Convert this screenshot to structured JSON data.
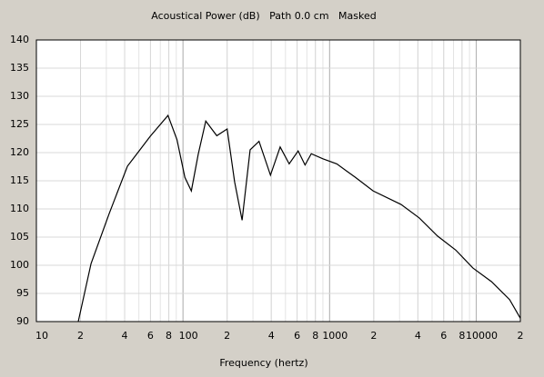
{
  "chart_data": {
    "type": "line",
    "title": "Acoustical Power (dB)   Path 0.0 cm   Masked",
    "x_label": "Frequency (hertz)",
    "log_x": true,
    "grid": true,
    "color": "#000000",
    "x": [
      19.3,
      23.6,
      31.4,
      41.8,
      48.2,
      59.8,
      79,
      91,
      103,
      114,
      127,
      143,
      170,
      200,
      225,
      253,
      287,
      330,
      395,
      460,
      530,
      610,
      680,
      750,
      900,
      1120,
      1500,
      1980,
      3070,
      4090,
      5440,
      7250,
      9500,
      12700,
      16900,
      20000
    ],
    "series": [
      {
        "name": "Acoustical Power",
        "color": "#000000",
        "values": [
          90,
          100.3,
          109.2,
          117.6,
          119.7,
          122.9,
          126.6,
          122.3,
          115.6,
          113.2,
          119.7,
          125.6,
          123,
          124.2,
          114.8,
          108,
          120.5,
          122,
          116,
          121,
          118,
          120.3,
          117.8,
          119.8,
          118.9,
          118,
          115.6,
          113.2,
          110.8,
          108.4,
          105.2,
          102.7,
          99.5,
          97.1,
          93.9,
          90.6
        ]
      }
    ],
    "xlim": [
      10,
      20000
    ],
    "ylim": [
      90,
      140
    ],
    "xticks": [
      10,
      {
        "value": 20,
        "label": "2"
      },
      {
        "value": 40,
        "label": "4"
      },
      {
        "value": 60,
        "label": "6"
      },
      {
        "value": 80,
        "label": "8"
      },
      100,
      {
        "value": 200,
        "label": "2"
      },
      {
        "value": 400,
        "label": "4"
      },
      {
        "value": 600,
        "label": "6"
      },
      {
        "value": 800,
        "label": "8"
      },
      1000,
      {
        "value": 2000,
        "label": "2"
      },
      {
        "value": 4000,
        "label": "4"
      },
      {
        "value": 6000,
        "label": "6"
      },
      {
        "value": 8000,
        "label": "8"
      },
      10000,
      {
        "value": 20000,
        "label": "2"
      }
    ],
    "yticks": [
      90,
      95,
      100,
      105,
      110,
      115,
      120,
      125,
      130,
      135,
      140
    ]
  }
}
